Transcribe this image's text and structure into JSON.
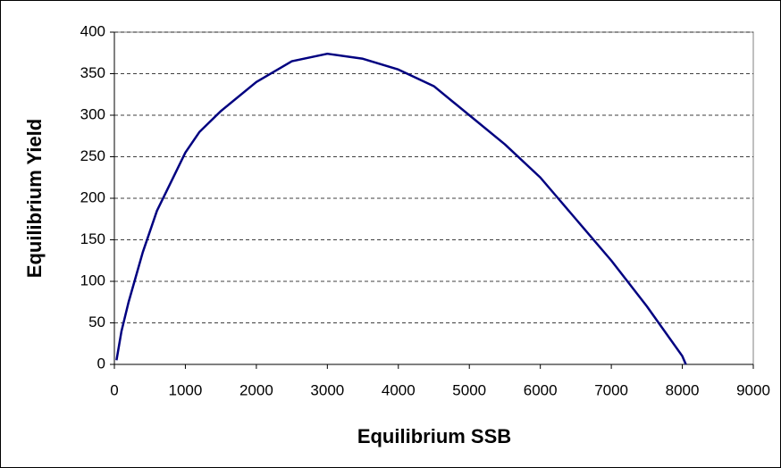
{
  "chart_data": {
    "type": "line",
    "xlabel": "Equilibrium SSB",
    "ylabel": "Equilibrium Yield",
    "x": [
      30,
      100,
      200,
      300,
      400,
      500,
      600,
      800,
      1000,
      1200,
      1500,
      2000,
      2500,
      3000,
      3500,
      4000,
      4500,
      5000,
      5500,
      6000,
      6250,
      6500,
      7000,
      7500,
      8000,
      8050
    ],
    "series": [
      {
        "color": "#000080",
        "values": [
          5,
          40,
          75,
          105,
          135,
          160,
          185,
          220,
          255,
          280,
          305,
          340,
          365,
          374,
          368,
          355,
          335,
          300,
          265,
          225,
          200,
          175,
          125,
          70,
          10,
          0
        ]
      }
    ],
    "xlim": [
      0,
      9000
    ],
    "xticks": [
      0,
      1000,
      2000,
      3000,
      4000,
      5000,
      6000,
      7000,
      8000,
      9000
    ],
    "ylim": [
      0,
      400
    ],
    "yticks": [
      0,
      50,
      100,
      150,
      200,
      250,
      300,
      350,
      400
    ],
    "grid": true
  }
}
